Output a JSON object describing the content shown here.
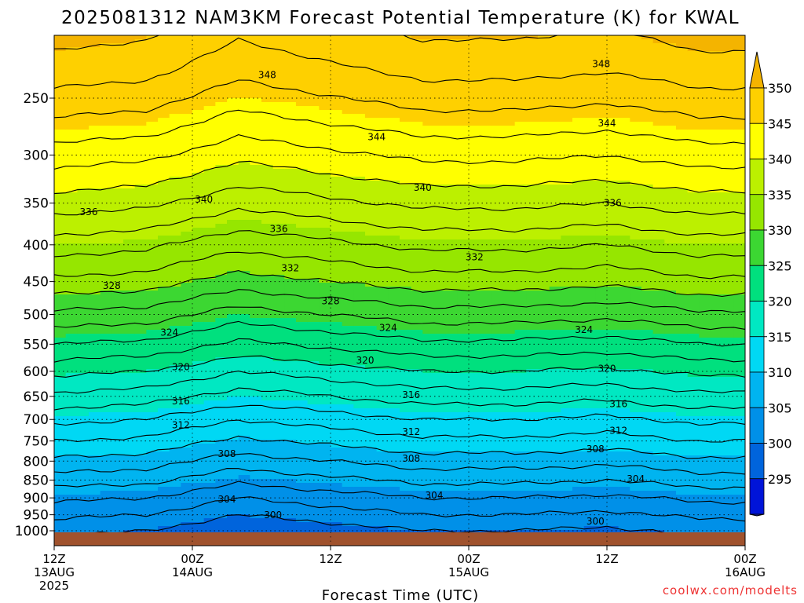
{
  "title": "2025081312 NAM3KM Forecast Potential Temperature (K) for KWAL",
  "credit": "coolwx.com/modelts",
  "chart_data": {
    "type": "heatmap",
    "title": "2025081312 NAM3KM Forecast Potential Temperature (K) for KWAL",
    "xlabel": "Forecast Time (UTC)",
    "ylabel": "",
    "x_ticks": [
      {
        "hour": 0,
        "lines": [
          "12Z",
          "13AUG",
          "2025"
        ]
      },
      {
        "hour": 12,
        "lines": [
          "00Z",
          "14AUG"
        ]
      },
      {
        "hour": 24,
        "lines": [
          "12Z"
        ]
      },
      {
        "hour": 36,
        "lines": [
          "00Z",
          "15AUG"
        ]
      },
      {
        "hour": 48,
        "lines": [
          "12Z"
        ]
      },
      {
        "hour": 60,
        "lines": [
          "00Z",
          "16AUG"
        ]
      }
    ],
    "xlim_hours": [
      0,
      60
    ],
    "y_ticks": [
      250,
      300,
      350,
      400,
      450,
      500,
      550,
      600,
      650,
      700,
      750,
      800,
      850,
      900,
      950,
      1000
    ],
    "ylim_hPa": [
      200,
      1020
    ],
    "ground_hPa": 1005,
    "colorbar": {
      "labels": [
        350,
        345,
        340,
        335,
        330,
        325,
        320,
        315,
        310,
        305,
        300,
        295
      ],
      "bins": [
        {
          "min": 345,
          "max": 350,
          "color": "#fed000"
        },
        {
          "min": 340,
          "max": 345,
          "color": "#ffff00"
        },
        {
          "min": 335,
          "max": 340,
          "color": "#bcf000"
        },
        {
          "min": 330,
          "max": 335,
          "color": "#96e600"
        },
        {
          "min": 325,
          "max": 330,
          "color": "#3cd732"
        },
        {
          "min": 320,
          "max": 325,
          "color": "#00e07e"
        },
        {
          "min": 315,
          "max": 320,
          "color": "#00e8c2"
        },
        {
          "min": 310,
          "max": 315,
          "color": "#00d8f4"
        },
        {
          "min": 305,
          "max": 310,
          "color": "#00b4f0"
        },
        {
          "min": 300,
          "max": 305,
          "color": "#0090e8"
        },
        {
          "min": 295,
          "max": 300,
          "color": "#0064dc"
        },
        {
          "min": 290,
          "max": 295,
          "color": "#0014d8"
        }
      ],
      "overflow_color": "#f4b400",
      "underflow_color": "#1e28d2"
    },
    "mean_profile": [
      {
        "p": 200,
        "theta": 350
      },
      {
        "p": 230,
        "theta": 348
      },
      {
        "p": 260,
        "theta": 345.5
      },
      {
        "p": 300,
        "theta": 342
      },
      {
        "p": 350,
        "theta": 338
      },
      {
        "p": 400,
        "theta": 334
      },
      {
        "p": 450,
        "theta": 330.5
      },
      {
        "p": 500,
        "theta": 326.5
      },
      {
        "p": 550,
        "theta": 323
      },
      {
        "p": 600,
        "theta": 319.5
      },
      {
        "p": 650,
        "theta": 316.5
      },
      {
        "p": 700,
        "theta": 313.5
      },
      {
        "p": 750,
        "theta": 311
      },
      {
        "p": 800,
        "theta": 308.5
      },
      {
        "p": 850,
        "theta": 306
      },
      {
        "p": 900,
        "theta": 303.5
      },
      {
        "p": 950,
        "theta": 301.5
      },
      {
        "p": 1000,
        "theta": 299.5
      },
      {
        "p": 1020,
        "theta": 299
      }
    ],
    "time_anomaly": [
      {
        "hour": 0,
        "dtheta": 1.0
      },
      {
        "hour": 8,
        "dtheta": 0.5
      },
      {
        "hour": 16,
        "dtheta": -1.5
      },
      {
        "hour": 24,
        "dtheta": -0.5
      },
      {
        "hour": 32,
        "dtheta": 0.5
      },
      {
        "hour": 40,
        "dtheta": 0.5
      },
      {
        "hour": 48,
        "dtheta": 0.0
      },
      {
        "hour": 56,
        "dtheta": 1.0
      },
      {
        "hour": 60,
        "dtheta": 1.0
      }
    ],
    "contour_labels": [
      {
        "value": "348",
        "hour": 18.5,
        "p": 232
      },
      {
        "value": "348",
        "hour": 47.5,
        "p": 224
      },
      {
        "value": "344",
        "hour": 28,
        "p": 283
      },
      {
        "value": "344",
        "hour": 48,
        "p": 271
      },
      {
        "value": "340",
        "hour": 32,
        "p": 333
      },
      {
        "value": "340",
        "hour": 13,
        "p": 346
      },
      {
        "value": "336",
        "hour": 3,
        "p": 360
      },
      {
        "value": "336",
        "hour": 19.5,
        "p": 380
      },
      {
        "value": "336",
        "hour": 48.5,
        "p": 350
      },
      {
        "value": "332",
        "hour": 36.5,
        "p": 416
      },
      {
        "value": "332",
        "hour": 20.5,
        "p": 431
      },
      {
        "value": "328",
        "hour": 5,
        "p": 456
      },
      {
        "value": "328",
        "hour": 24,
        "p": 479
      },
      {
        "value": "324",
        "hour": 10,
        "p": 530
      },
      {
        "value": "324",
        "hour": 29,
        "p": 522
      },
      {
        "value": "324",
        "hour": 46,
        "p": 525
      },
      {
        "value": "320",
        "hour": 11,
        "p": 592
      },
      {
        "value": "320",
        "hour": 27,
        "p": 579
      },
      {
        "value": "320",
        "hour": 48,
        "p": 595
      },
      {
        "value": "316",
        "hour": 11,
        "p": 660
      },
      {
        "value": "316",
        "hour": 31,
        "p": 647
      },
      {
        "value": "316",
        "hour": 49,
        "p": 666
      },
      {
        "value": "312",
        "hour": 11,
        "p": 713
      },
      {
        "value": "312",
        "hour": 31,
        "p": 728
      },
      {
        "value": "312",
        "hour": 49,
        "p": 726
      },
      {
        "value": "308",
        "hour": 15,
        "p": 781
      },
      {
        "value": "308",
        "hour": 31,
        "p": 793
      },
      {
        "value": "308",
        "hour": 47,
        "p": 770
      },
      {
        "value": "304",
        "hour": 15,
        "p": 904
      },
      {
        "value": "304",
        "hour": 33,
        "p": 893
      },
      {
        "value": "304",
        "hour": 50.5,
        "p": 847
      },
      {
        "value": "300",
        "hour": 19,
        "p": 951
      },
      {
        "value": "300",
        "hour": 47,
        "p": 970
      }
    ],
    "grid": "dotted"
  }
}
